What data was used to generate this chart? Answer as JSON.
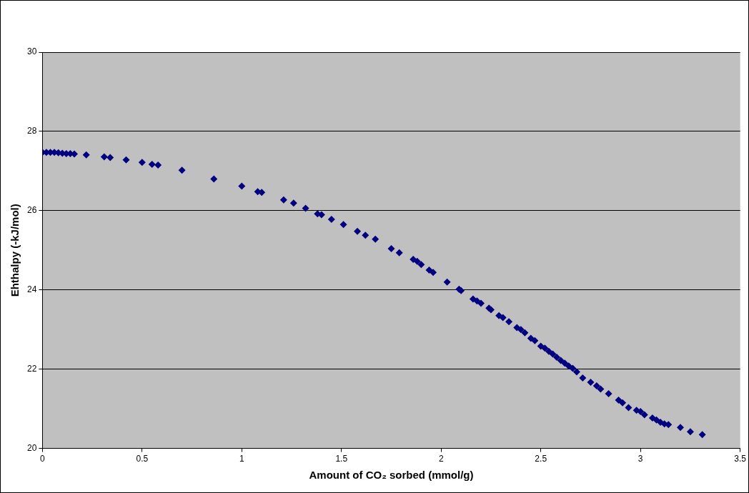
{
  "chart_data": {
    "type": "scatter",
    "xlabel": "Amount of CO₂ sorbed (mmol/g)",
    "ylabel": "Ehthalpy (-kJ/mol)",
    "x": [
      0,
      0.02,
      0.04,
      0.06,
      0.08,
      0.1,
      0.12,
      0.14,
      0.16,
      0.22,
      0.31,
      0.34,
      0.42,
      0.5,
      0.55,
      0.58,
      0.7,
      0.86,
      1.0,
      1.08,
      1.1,
      1.21,
      1.26,
      1.32,
      1.38,
      1.4,
      1.45,
      1.51,
      1.58,
      1.62,
      1.67,
      1.75,
      1.79,
      1.86,
      1.88,
      1.9,
      1.94,
      1.96,
      2.03,
      2.09,
      2.1,
      2.16,
      2.18,
      2.2,
      2.24,
      2.25,
      2.29,
      2.31,
      2.34,
      2.38,
      2.4,
      2.42,
      2.45,
      2.47,
      2.5,
      2.52,
      2.54,
      2.56,
      2.58,
      2.6,
      2.62,
      2.64,
      2.66,
      2.68,
      2.71,
      2.75,
      2.78,
      2.8,
      2.84,
      2.89,
      2.91,
      2.94,
      2.98,
      3.0,
      3.02,
      3.06,
      3.08,
      3.1,
      3.12,
      3.14,
      3.2,
      3.25,
      3.31
    ],
    "series": [
      {
        "color": "#000080",
        "values": [
          27.47,
          27.47,
          27.47,
          27.47,
          27.46,
          27.45,
          27.44,
          27.44,
          27.43,
          27.41,
          27.36,
          27.34,
          27.28,
          27.22,
          27.17,
          27.15,
          27.02,
          26.8,
          26.62,
          26.48,
          26.46,
          26.27,
          26.19,
          26.06,
          25.92,
          25.9,
          25.78,
          25.65,
          25.48,
          25.38,
          25.28,
          25.04,
          24.94,
          24.77,
          24.72,
          24.64,
          24.5,
          24.44,
          24.2,
          24.02,
          23.98,
          23.77,
          23.72,
          23.66,
          23.54,
          23.5,
          23.35,
          23.3,
          23.2,
          23.05,
          23.0,
          22.92,
          22.78,
          22.72,
          22.58,
          22.53,
          22.45,
          22.38,
          22.3,
          22.22,
          22.15,
          22.08,
          22.02,
          21.93,
          21.78,
          21.67,
          21.58,
          21.5,
          21.38,
          21.22,
          21.15,
          21.03,
          20.96,
          20.93,
          20.85,
          20.77,
          20.72,
          20.66,
          20.62,
          20.6,
          20.53,
          20.42,
          20.35
        ]
      }
    ],
    "xlim": [
      0,
      3.5
    ],
    "xticks": [
      0,
      0.5,
      1,
      1.5,
      2,
      2.5,
      3,
      3.5
    ],
    "ylim": [
      20,
      30
    ],
    "yticks": [
      20,
      22,
      24,
      26,
      28,
      30
    ],
    "grid": "y",
    "legend": false,
    "marker": "diamond"
  }
}
